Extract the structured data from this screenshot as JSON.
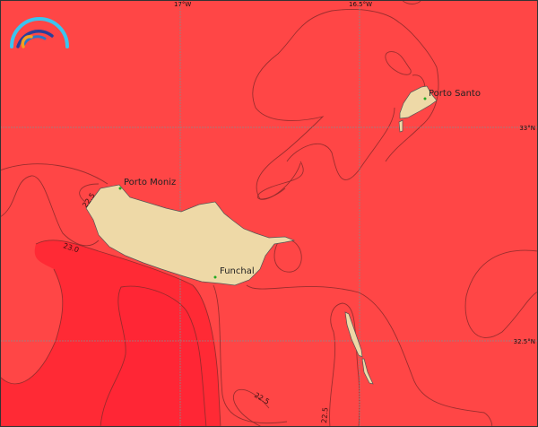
{
  "map": {
    "colors": {
      "sea_base": "#ff4646",
      "sea_warm": "#ff2a35",
      "land": "#eed9a7",
      "place_marker": "#22aa22"
    },
    "logo_icon": "rainbow-arc-logo",
    "grid": {
      "longitudes": [
        "17°W",
        "16.5°W"
      ],
      "latitudes": [
        "33°N",
        "32.5°N"
      ]
    },
    "places": [
      {
        "name": "Porto Santo"
      },
      {
        "name": "Porto Moniz"
      },
      {
        "name": "Funchal"
      }
    ],
    "contour_labels": [
      "22.5",
      "23.0",
      "22.5",
      "22.5"
    ]
  }
}
